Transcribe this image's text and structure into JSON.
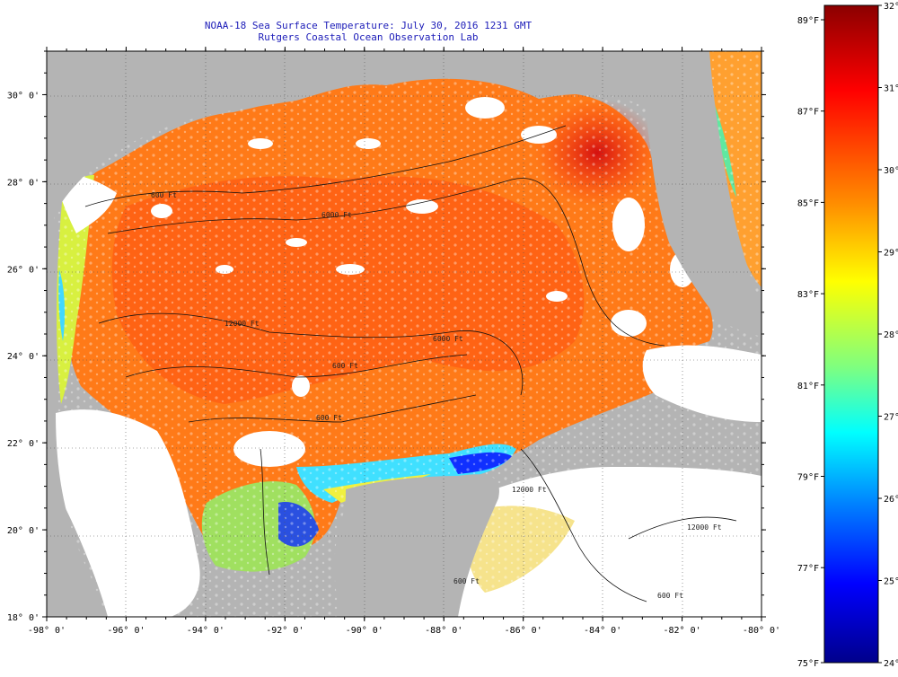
{
  "title": "NOAA-18 Sea Surface Temperature:  July 30, 2016 1231 GMT",
  "subtitle": "Rutgers Coastal Ocean Observation Lab",
  "map": {
    "lon_range": [
      -98,
      -80
    ],
    "lat_range": [
      18,
      31
    ],
    "x_ticks": [
      "-98° 0'",
      "-96° 0'",
      "-94° 0'",
      "-92° 0'",
      "-90° 0'",
      "-88° 0'",
      "-86° 0'",
      "-84° 0'",
      "-82° 0'",
      "-80° 0'"
    ],
    "y_ticks": [
      "18° 0'",
      "20° 0'",
      "22° 0'",
      "24° 0'",
      "26° 0'",
      "28° 0'",
      "30° 0'"
    ],
    "contour_labels": [
      "600 Ft",
      "6000 Ft",
      "12000 Ft",
      "600 Ft",
      "6000 Ft",
      "600 Ft",
      "12000 Ft",
      "600 Ft",
      "12000 Ft",
      "600 Ft"
    ],
    "land_color": "#b4b4b4",
    "cloud_color": "#ffffff"
  },
  "colorbar": {
    "fahrenheit_labels": [
      "89°F",
      "87°F",
      "85°F",
      "83°F",
      "81°F",
      "79°F",
      "77°F",
      "75°F"
    ],
    "celsius_labels": [
      "32°C",
      "31°C",
      "30°C",
      "29°C",
      "28°C",
      "27°C",
      "26°C",
      "25°C",
      "24°C"
    ],
    "colors": [
      "#8b0000",
      "#ff0000",
      "#ff8c00",
      "#ffff00",
      "#7fff7f",
      "#00ffff",
      "#0080ff",
      "#0000ff",
      "#00008b"
    ]
  }
}
